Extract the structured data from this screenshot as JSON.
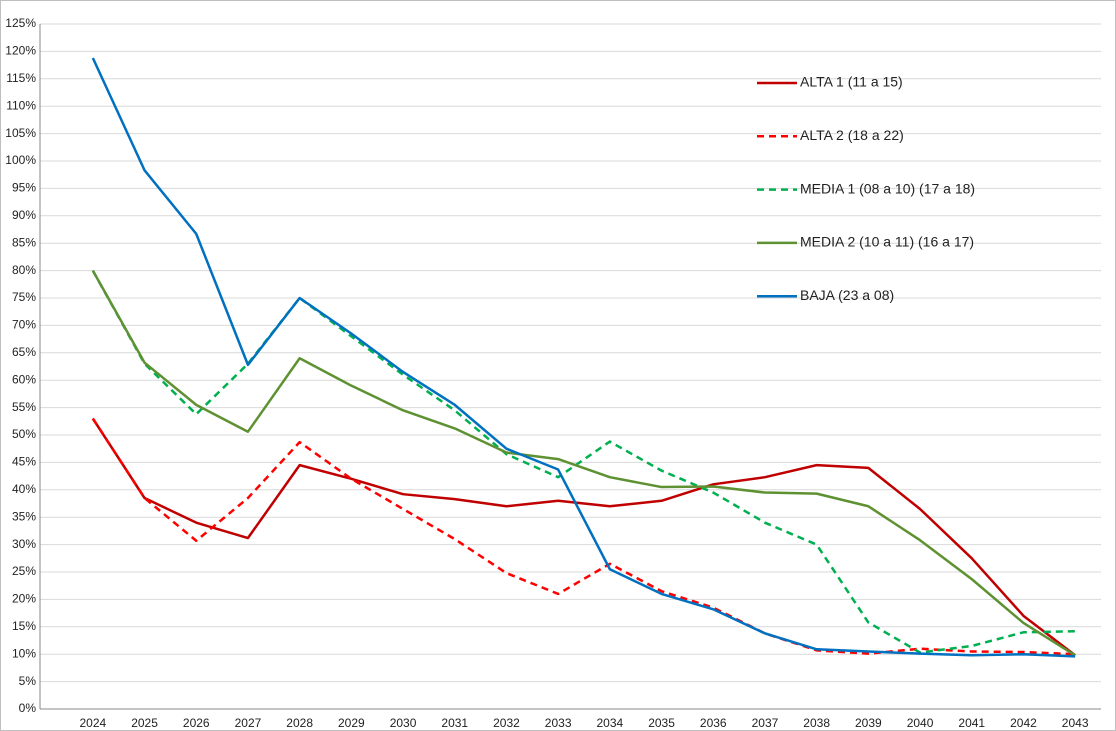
{
  "chart_data": {
    "type": "line",
    "categories": [
      "2024",
      "2025",
      "2026",
      "2027",
      "2028",
      "2029",
      "2030",
      "2031",
      "2032",
      "2033",
      "2034",
      "2035",
      "2036",
      "2037",
      "2038",
      "2039",
      "2040",
      "2041",
      "2042",
      "2043"
    ],
    "series": [
      {
        "name": "ALTA 1 (11 a 15)",
        "color": "#c00000",
        "dashed": false,
        "values": [
          53,
          38.5,
          34,
          31.2,
          44.5,
          42,
          39.2,
          38.3,
          37,
          38,
          37,
          38,
          41,
          42.3,
          44.5,
          44,
          36.5,
          27.5,
          17,
          9.8
        ]
      },
      {
        "name": "ALTA 2 (18 a 22)",
        "color": "#ff0000",
        "dashed": true,
        "values": [
          53,
          38.5,
          30.7,
          38.5,
          48.7,
          42,
          36.5,
          31,
          24.8,
          21,
          26.5,
          21.5,
          18.5,
          13.8,
          10.7,
          10.1,
          11,
          10.5,
          10.4,
          10
        ]
      },
      {
        "name": "MEDIA 1 (08 a 10) (17 a 18)",
        "color": "#00b050",
        "dashed": true,
        "values": [
          80,
          63,
          53.8,
          63,
          75,
          68,
          61,
          54.5,
          46.5,
          42.3,
          48.8,
          43.5,
          39.5,
          34,
          30,
          15.8,
          10.3,
          11.5,
          14,
          14.2
        ]
      },
      {
        "name": "MEDIA 2 (10 a 11) (16 a 17)",
        "color": "#5e9132",
        "dashed": false,
        "values": [
          80,
          63.2,
          55.5,
          50.6,
          64,
          59,
          54.5,
          51.2,
          46.8,
          45.6,
          42.3,
          40.5,
          40.6,
          39.5,
          39.3,
          37,
          30.8,
          23.7,
          15.7,
          9.8
        ]
      },
      {
        "name": "BAJA (23 a 08)",
        "color": "#0070c0",
        "dashed": false,
        "values": [
          118.8,
          98.3,
          86.7,
          62.8,
          75,
          68.5,
          61.5,
          55.5,
          47.5,
          43.7,
          25.5,
          21,
          18.2,
          13.8,
          10.9,
          10.5,
          10.1,
          9.8,
          10,
          9.6
        ]
      }
    ],
    "ylim": [
      0,
      125
    ],
    "yticks": [
      {
        "value": 0,
        "label": "0%"
      },
      {
        "value": 5,
        "label": "5%"
      },
      {
        "value": 10,
        "label": "10%"
      },
      {
        "value": 15,
        "label": "15%"
      },
      {
        "value": 20,
        "label": "20%"
      },
      {
        "value": 25,
        "label": "25%"
      },
      {
        "value": 30,
        "label": "30%"
      },
      {
        "value": 35,
        "label": "35%"
      },
      {
        "value": 40,
        "label": "40%"
      },
      {
        "value": 45,
        "label": "45%"
      },
      {
        "value": 50,
        "label": "50%"
      },
      {
        "value": 55,
        "label": "55%"
      },
      {
        "value": 60,
        "label": "60%"
      },
      {
        "value": 65,
        "label": "65%"
      },
      {
        "value": 70,
        "label": "70%"
      },
      {
        "value": 75,
        "label": "75%"
      },
      {
        "value": 80,
        "label": "80%"
      },
      {
        "value": 85,
        "label": "85%"
      },
      {
        "value": 90,
        "label": "90%"
      },
      {
        "value": 95,
        "label": "95%"
      },
      {
        "value": 100,
        "label": "100%"
      },
      {
        "value": 105,
        "label": "105%"
      },
      {
        "value": 110,
        "label": "110%"
      },
      {
        "value": 115,
        "label": "115%"
      },
      {
        "value": 120,
        "label": "120%"
      },
      {
        "value": 125,
        "label": "125%"
      }
    ],
    "grid": true,
    "legend": "top-right"
  }
}
